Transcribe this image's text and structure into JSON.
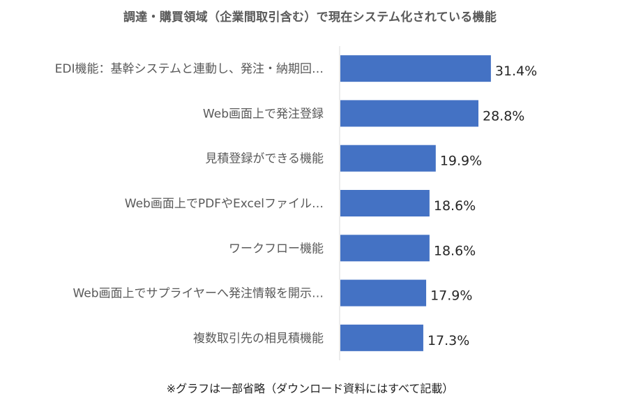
{
  "chart_data": {
    "type": "bar",
    "orientation": "horizontal",
    "title": "調達・購買領域（企業間取引含む）で現在システム化されている機能",
    "categories": [
      "EDI機能：基幹システムと連動し、発注・納期回…",
      "Web画面上で発注登録",
      "見積登録ができる機能",
      "Web画面上でPDFやExcelファイル…",
      "ワークフロー機能",
      "Web画面上でサプライヤーへ発注情報を開示…",
      "複数取引先の相見積機能"
    ],
    "values": [
      31.4,
      28.8,
      19.9,
      18.6,
      18.6,
      17.9,
      17.3
    ],
    "value_labels": [
      "31.4%",
      "28.8%",
      "19.9%",
      "18.6%",
      "18.6%",
      "17.9%",
      "17.3%"
    ],
    "unit": "%",
    "xlim": [
      0,
      40
    ],
    "grid": false,
    "legend": "none",
    "bar_color": "#4472C4",
    "axis_color": "#D9D9D9"
  },
  "footnote": "※グラフは一部省略（ダウンロード資料にはすべて記載）"
}
